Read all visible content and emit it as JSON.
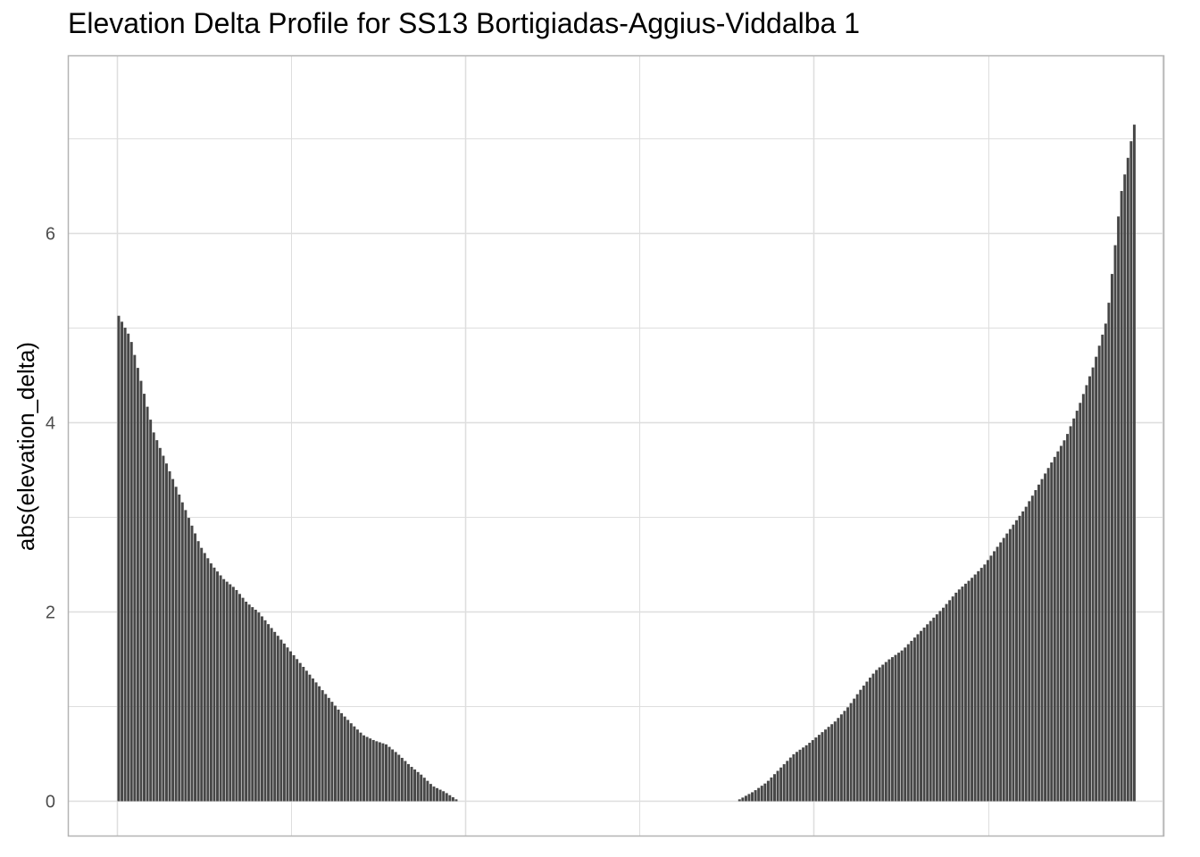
{
  "chart_data": {
    "type": "bar",
    "title": "Elevation Delta Profile for SS13 Bortigiadas-Aggius-Viddalba 1",
    "xlabel": "",
    "ylabel": "abs(elevation_delta)",
    "ylim": [
      0,
      7.5
    ],
    "y_ticks": [
      "0",
      "2",
      "4",
      "6"
    ],
    "x_ticks": [],
    "grid": true,
    "bar_color": "#474747",
    "panel_border_color": "#b3b3b3",
    "gridline_color": "#dedede",
    "bar_count": 320,
    "series": [
      {
        "segment": "left-descending",
        "positions": [
          0,
          106
        ],
        "anchor_values": [
          5.13,
          4.9,
          4.4,
          3.9,
          3.6,
          3.3,
          3.0,
          2.7,
          2.5,
          2.35,
          2.25,
          2.1,
          2.0,
          1.85,
          1.7,
          1.55,
          1.4,
          1.25,
          1.1,
          0.95,
          0.82,
          0.7,
          0.64,
          0.6,
          0.5,
          0.38,
          0.28,
          0.16,
          0.1,
          0.02
        ]
      },
      {
        "segment": "right-ascending",
        "positions": [
          195,
          319
        ],
        "anchor_values": [
          0.02,
          0.1,
          0.2,
          0.35,
          0.5,
          0.6,
          0.72,
          0.84,
          1.0,
          1.2,
          1.38,
          1.5,
          1.6,
          1.75,
          1.9,
          2.05,
          2.22,
          2.35,
          2.5,
          2.7,
          2.9,
          3.1,
          3.35,
          3.6,
          3.85,
          4.2,
          4.6,
          5.1,
          6.4,
          7.15
        ]
      }
    ]
  }
}
